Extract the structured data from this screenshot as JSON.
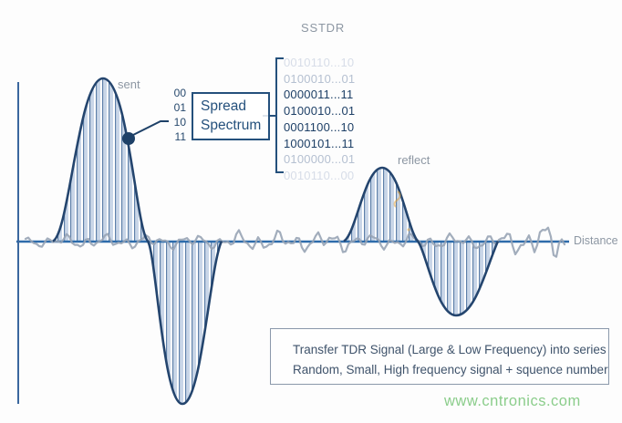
{
  "title": "SSTDR",
  "plot": {
    "sent_label": "sent",
    "reflect_label": "reflect",
    "axis_label": "Distance"
  },
  "encoder": {
    "inputs": [
      "00",
      "01",
      "10",
      "11"
    ],
    "box_line1": "Spread",
    "box_line2": "Spectrum"
  },
  "codes": {
    "rows": [
      "0010110...10",
      "0100010...01",
      "0000011...11",
      "0100010...01",
      "0001100...10",
      "1000101...11",
      "0100000...01",
      "0010110...00"
    ]
  },
  "note": {
    "line1": "Transfer TDR Signal (Large & Low Frequency) into series",
    "line2": "Random, Small, High frequency signal + squence number"
  },
  "watermark": "www.cntronics.com",
  "colors": {
    "waveform_navy": "#24456e",
    "hatch_fill_blue": "#c9d6e8",
    "noise_gray": "#98a4b5",
    "axis_blue": "#2e6cab",
    "label_gray": "#8d97a3",
    "watermark_green": "#8bcd8b",
    "accent_orange": "#e0a23f"
  }
}
